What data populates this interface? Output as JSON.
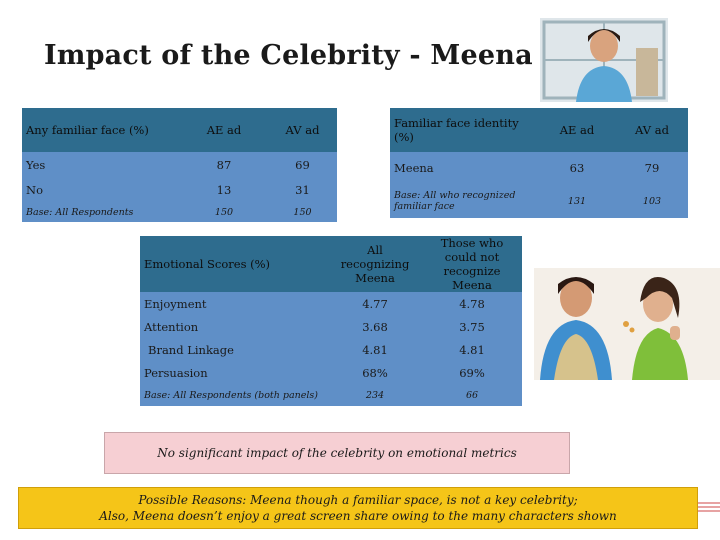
{
  "title": "Impact of the Celebrity - Meena",
  "familiar_table": {
    "headers": [
      "Any familiar face (%)",
      "AE ad",
      "AV ad"
    ],
    "rows": [
      {
        "label": "Yes",
        "ae": "87",
        "av": "69"
      },
      {
        "label": "No",
        "ae": "13",
        "av": "31"
      }
    ],
    "base": {
      "label": "Base: All Respondents",
      "ae": "150",
      "av": "150"
    }
  },
  "identity_table": {
    "headers": [
      "Familiar face identity (%)",
      "AE ad",
      "AV ad"
    ],
    "rows": [
      {
        "label": "Meena",
        "ae": "63",
        "av": "79"
      }
    ],
    "base": {
      "label": "Base: All who recognized familiar face",
      "ae": "131",
      "av": "103"
    }
  },
  "emotional_table": {
    "headers": [
      "Emotional Scores (%)",
      "All recognizing Meena",
      "Those who could not recognize Meena"
    ],
    "rows": [
      {
        "label": "Enjoyment",
        "all": "4.77",
        "not": "4.78"
      },
      {
        "label": "Attention",
        "all": "3.68",
        "not": "3.75"
      },
      {
        "label": "Brand Linkage",
        "all": "4.81",
        "not": "4.81"
      },
      {
        "label": "Persuasion",
        "all": "68%",
        "not": "69%"
      }
    ],
    "base": {
      "label": "Base: All Respondents (both panels)",
      "all": "234",
      "not": "66"
    }
  },
  "note": "No significant impact of the celebrity on emotional metrics",
  "reasons": {
    "line1": "Possible Reasons: Meena though a familiar space, is not a key celebrity;",
    "line2": "Also, Meena doesn’t enjoy a great screen share owing to the many characters shown"
  },
  "colors": {
    "header": "#2e6c8e",
    "body": "#5f8fc7",
    "note": "#f6cfd3",
    "reasons": "#f5c518"
  }
}
